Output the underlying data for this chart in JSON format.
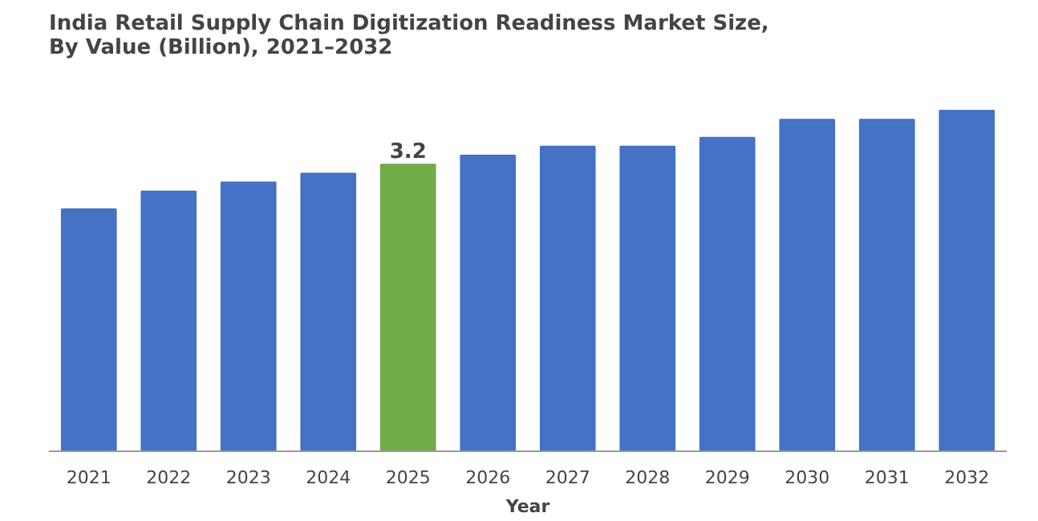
{
  "chart_data": {
    "type": "bar",
    "title": "India Retail Supply Chain Digitization Readiness Market Size,\nBy Value (Billion), 2021–2032",
    "xlabel": "Year",
    "categories": [
      "2021",
      "2022",
      "2023",
      "2024",
      "2025",
      "2026",
      "2027",
      "2028",
      "2029",
      "2030",
      "2031",
      "2032"
    ],
    "values": [
      2.7,
      2.9,
      3.0,
      3.1,
      3.2,
      3.3,
      3.4,
      3.4,
      3.5,
      3.7,
      3.7,
      3.8
    ],
    "colors": [
      "#4472c4",
      "#4472c4",
      "#4472c4",
      "#4472c4",
      "#70ad47",
      "#4472c4",
      "#4472c4",
      "#4472c4",
      "#4472c4",
      "#4472c4",
      "#4472c4",
      "#4472c4"
    ],
    "value_labels": [
      null,
      null,
      null,
      null,
      "3.2",
      null,
      null,
      null,
      null,
      null,
      null,
      null
    ],
    "grid": false
  }
}
